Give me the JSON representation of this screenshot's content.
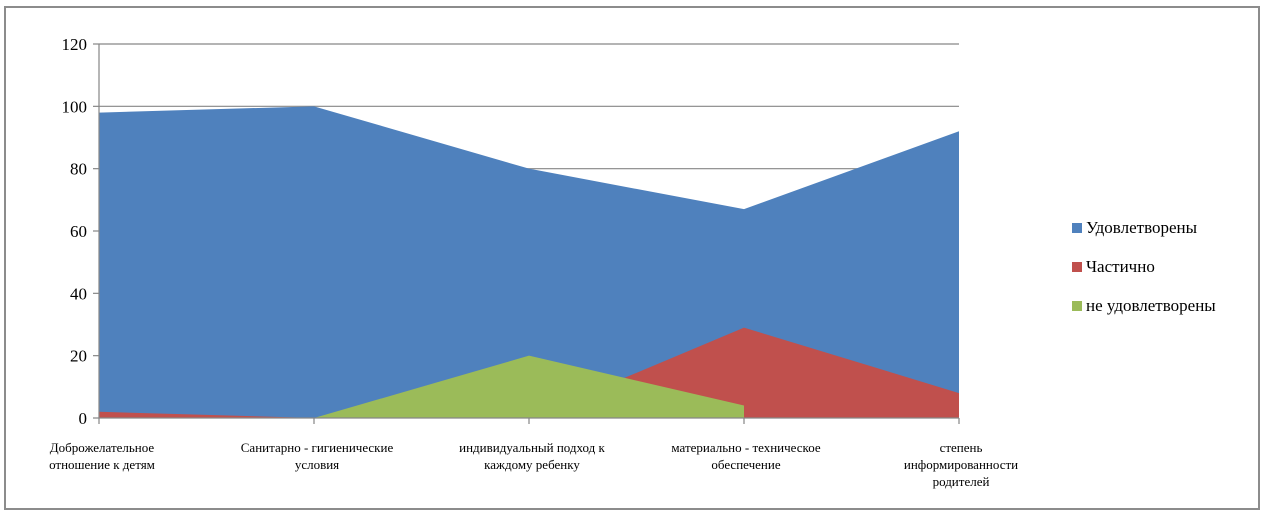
{
  "chart_data": {
    "type": "area",
    "categories": [
      [
        "Доброжелательное",
        "отношение к детям"
      ],
      [
        "Санитарно - гигиенические",
        "условия"
      ],
      [
        "индивидуальный подход к",
        "каждому ребенку"
      ],
      [
        "материально - техническое",
        "обеспечение"
      ],
      [
        "степень",
        "информированности",
        "родителей"
      ]
    ],
    "series": [
      {
        "name": "Удовлетворены",
        "color": "#4f81bd",
        "values": [
          98,
          100,
          80,
          67,
          92
        ]
      },
      {
        "name": "Частично",
        "color": "#c0504d",
        "values": [
          2,
          0,
          0,
          29,
          8
        ]
      },
      {
        "name": "не удовлетворены",
        "color": "#9bbb59",
        "values": [
          0,
          0,
          20,
          4,
          null
        ]
      }
    ],
    "ylim": [
      0,
      120
    ],
    "yticks": [
      0,
      20,
      40,
      60,
      80,
      100,
      120
    ],
    "grid": true,
    "legend": "right"
  }
}
